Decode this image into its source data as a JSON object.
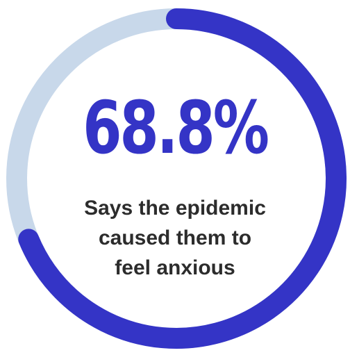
{
  "chart_data": {
    "type": "pie",
    "style": "donut",
    "values": [
      68.8,
      31.2
    ],
    "value_label": "68.8%",
    "caption_lines": [
      "Says the epidemic",
      "caused them to",
      "feel anxious"
    ],
    "start_at": "top",
    "direction": "clockwise"
  },
  "colors": {
    "arc": "#3434c6",
    "track": "#c8d8ea",
    "value_text": "#3434c6",
    "caption_text": "#2c2c2c",
    "background": "#ffffff"
  }
}
